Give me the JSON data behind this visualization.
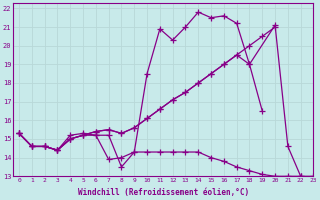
{
  "xlabel": "Windchill (Refroidissement éolien,°C)",
  "bg_color": "#c8eaea",
  "line_color": "#880088",
  "grid_color": "#aacccc",
  "xlim": [
    -0.5,
    23
  ],
  "ylim": [
    13,
    22.3
  ],
  "xticks": [
    0,
    1,
    2,
    3,
    4,
    5,
    6,
    7,
    8,
    9,
    10,
    11,
    12,
    13,
    14,
    15,
    16,
    17,
    18,
    19,
    20,
    21,
    22,
    23
  ],
  "yticks": [
    13,
    14,
    15,
    16,
    17,
    18,
    19,
    20,
    21,
    22
  ],
  "series": [
    {
      "x": [
        0,
        1,
        2,
        3,
        4,
        5,
        6,
        7,
        8,
        9,
        10,
        11,
        12,
        13,
        14,
        15,
        16,
        17,
        18,
        20,
        21,
        22
      ],
      "y": [
        15.3,
        14.6,
        14.6,
        14.4,
        15.2,
        15.3,
        15.2,
        15.2,
        13.5,
        14.3,
        18.5,
        20.9,
        20.3,
        21.0,
        21.8,
        21.5,
        21.6,
        21.2,
        19.0,
        21.1,
        14.6,
        13.0
      ]
    },
    {
      "x": [
        0,
        1,
        2,
        3,
        4,
        5,
        6,
        7,
        8,
        9,
        10,
        11,
        12,
        13,
        14,
        15,
        16,
        17,
        18,
        19,
        20,
        21,
        22,
        23
      ],
      "y": [
        15.3,
        14.6,
        14.6,
        14.4,
        15.0,
        15.2,
        15.2,
        13.9,
        14.0,
        14.3,
        14.3,
        14.3,
        14.3,
        14.3,
        14.3,
        14.0,
        13.8,
        13.5,
        13.3,
        13.1,
        13.0,
        13.0,
        13.0,
        13.0
      ]
    },
    {
      "x": [
        0,
        1,
        2,
        3,
        4,
        5,
        6,
        7,
        8,
        9,
        10,
        11,
        12,
        13,
        14,
        15,
        16,
        17,
        18,
        19
      ],
      "y": [
        15.3,
        14.6,
        14.6,
        14.4,
        15.0,
        15.2,
        15.4,
        15.5,
        15.3,
        15.6,
        16.1,
        16.6,
        17.1,
        17.5,
        18.0,
        18.5,
        19.0,
        19.5,
        19.0,
        16.5
      ]
    },
    {
      "x": [
        0,
        1,
        2,
        3,
        4,
        5,
        6,
        7,
        8,
        9,
        10,
        11,
        12,
        13,
        14,
        15,
        16,
        17,
        18,
        19,
        20
      ],
      "y": [
        15.3,
        14.6,
        14.6,
        14.4,
        15.0,
        15.2,
        15.4,
        15.5,
        15.3,
        15.6,
        16.1,
        16.6,
        17.1,
        17.5,
        18.0,
        18.5,
        19.0,
        19.5,
        20.0,
        20.5,
        21.0
      ]
    }
  ]
}
